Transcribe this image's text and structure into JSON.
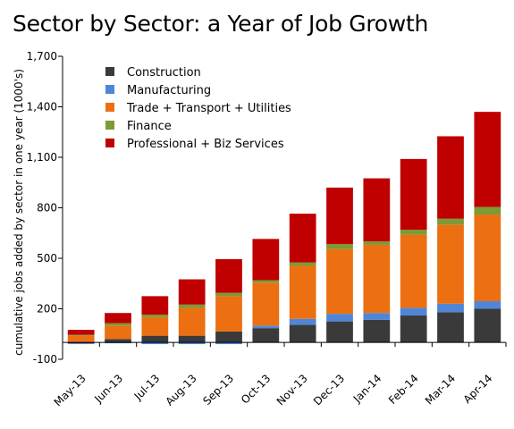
{
  "title": "Sector by Sector: a Year of Job Growth",
  "chart_data": {
    "type": "bar",
    "stacked": true,
    "title": "Sector by Sector: a Year of Job Growth",
    "xlabel": "",
    "ylabel": "cumulative jobs added by sector in one year (1000's)",
    "ylim": [
      -100,
      1700
    ],
    "yticks": [
      -100,
      200,
      500,
      800,
      1100,
      1400,
      1700
    ],
    "ytick_labels": [
      "-100",
      "200",
      "500",
      "800",
      "1,100",
      "1,400",
      "1,700"
    ],
    "grid": false,
    "legend_position": "top-left",
    "categories": [
      "May-13",
      "Jun-13",
      "Jul-13",
      "Aug-13",
      "Sep-13",
      "Oct-13",
      "Nov-13",
      "Dec-13",
      "Jan-14",
      "Feb-14",
      "Mar-14",
      "Apr-14"
    ],
    "series": [
      {
        "name": "Construction",
        "color": "#3a3a3a",
        "values": [
          -5,
          20,
          40,
          40,
          65,
          85,
          105,
          125,
          135,
          160,
          180,
          200
        ]
      },
      {
        "name": "Manufacturing",
        "color": "#4f86d8",
        "values": [
          -5,
          -5,
          -10,
          -10,
          -10,
          15,
          35,
          45,
          40,
          45,
          50,
          45
        ]
      },
      {
        "name": "Trade + Transport + Utilities",
        "color": "#ec7012",
        "values": [
          40,
          80,
          110,
          165,
          210,
          255,
          315,
          385,
          405,
          435,
          470,
          515
        ]
      },
      {
        "name": "Finance",
        "color": "#7c9b34",
        "values": [
          5,
          15,
          15,
          20,
          20,
          15,
          20,
          30,
          20,
          30,
          35,
          45
        ]
      },
      {
        "name": "Professional + Biz Services",
        "color": "#c00000",
        "values": [
          30,
          60,
          110,
          150,
          200,
          245,
          290,
          335,
          375,
          420,
          490,
          565
        ]
      }
    ]
  }
}
